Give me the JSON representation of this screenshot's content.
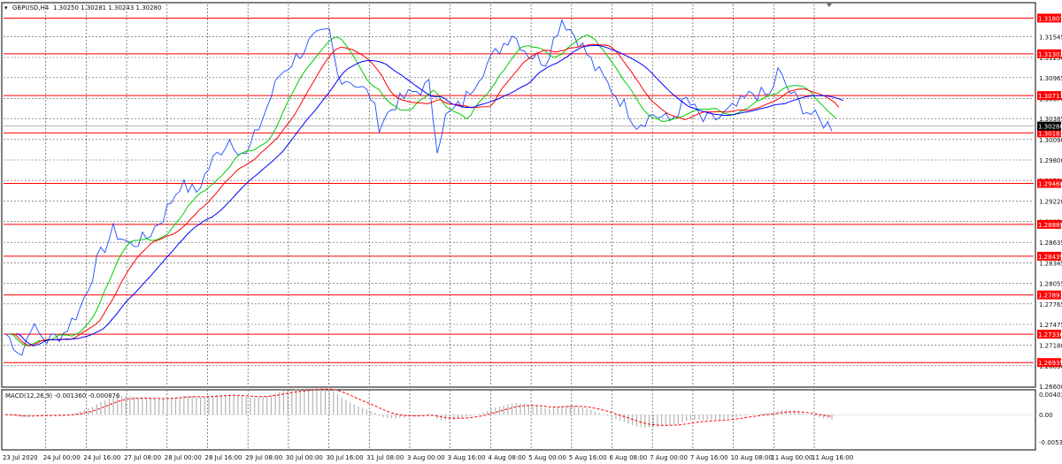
{
  "chart_data": [
    {
      "type": "line",
      "header": {
        "symbol": "GBPUSD,H4",
        "ohlc": "1.30250 1.30281 1.30243 1.30280"
      },
      "price_axis": {
        "labels": [
          "1.31545",
          "1.31250",
          "1.30965",
          "1.30670",
          "1.30385",
          "1.30090",
          "1.29800",
          "1.29510",
          "1.29220",
          "1.28930",
          "1.28635",
          "1.28345",
          "1.28055",
          "1.27765",
          "1.27475",
          "1.27180",
          "1.26890",
          "1.26600"
        ],
        "ylim": [
          1.266,
          1.32
        ]
      },
      "bid_label": "1.30280",
      "horizontal_levels": [
        "1.31807",
        "1.31302",
        "1.30711",
        "1.30183",
        "1.29468",
        "1.28889",
        "1.28439",
        "1.27891",
        "1.27336",
        "1.26935"
      ],
      "time_axis": [
        "23 Jul 2020",
        "24 Jul 00:00",
        "24 Jul 16:00",
        "27 Jul 08:00",
        "28 Jul 00:00",
        "28 Jul 16:00",
        "29 Jul 08:00",
        "30 Jul 00:00",
        "30 Jul 16:00",
        "31 Jul 08:00",
        "3 Aug 00:00",
        "3 Aug 16:00",
        "4 Aug 08:00",
        "5 Aug 00:00",
        "5 Aug 16:00",
        "6 Aug 08:00",
        "7 Aug 00:00",
        "7 Aug 16:00",
        "10 Aug 08:00",
        "11 Aug 00:00",
        "11 Aug 16:00"
      ],
      "price_anchors": [
        [
          0,
          1.2735
        ],
        [
          4,
          1.2705
        ],
        [
          6,
          1.2745
        ],
        [
          10,
          1.2725
        ],
        [
          14,
          1.2735
        ],
        [
          18,
          1.277
        ],
        [
          22,
          1.2835
        ],
        [
          26,
          1.288
        ],
        [
          30,
          1.286
        ],
        [
          34,
          1.287
        ],
        [
          38,
          1.29
        ],
        [
          42,
          1.2945
        ],
        [
          46,
          1.2935
        ],
        [
          50,
          1.298
        ],
        [
          54,
          1.301
        ],
        [
          58,
          1.2985
        ],
        [
          62,
          1.304
        ],
        [
          66,
          1.31
        ],
        [
          70,
          1.3125
        ],
        [
          74,
          1.315
        ],
        [
          78,
          1.316
        ],
        [
          80,
          1.31
        ],
        [
          84,
          1.309
        ],
        [
          88,
          1.307
        ],
        [
          90,
          1.303
        ],
        [
          94,
          1.306
        ],
        [
          98,
          1.3075
        ],
        [
          102,
          1.3085
        ],
        [
          104,
          1.3
        ],
        [
          106,
          1.304
        ],
        [
          110,
          1.306
        ],
        [
          114,
          1.31
        ],
        [
          118,
          1.313
        ],
        [
          122,
          1.316
        ],
        [
          126,
          1.313
        ],
        [
          130,
          1.312
        ],
        [
          134,
          1.318
        ],
        [
          138,
          1.315
        ],
        [
          142,
          1.311
        ],
        [
          146,
          1.308
        ],
        [
          150,
          1.305
        ],
        [
          152,
          1.303
        ],
        [
          156,
          1.3045
        ],
        [
          160,
          1.3035
        ],
        [
          164,
          1.3065
        ],
        [
          168,
          1.3035
        ],
        [
          172,
          1.304
        ],
        [
          176,
          1.3055
        ],
        [
          180,
          1.3075
        ],
        [
          184,
          1.307
        ],
        [
          186,
          1.3105
        ],
        [
          189,
          1.3075
        ],
        [
          192,
          1.3055
        ],
        [
          196,
          1.3035
        ],
        [
          199,
          1.3028
        ]
      ],
      "series": [
        {
          "name": "",
          "period": 8,
          "color": "#00cc00"
        },
        {
          "name": "",
          "period": 13,
          "color": "#ff0000"
        },
        {
          "name": "",
          "period": 21,
          "color": "#0000ff"
        }
      ]
    },
    {
      "type": "line",
      "title": "MACD(12,26,9) -0.001360 -0.000876",
      "y_labels": [
        "0.00403",
        "0.00",
        "-0.00531"
      ],
      "ylim": [
        -0.0065,
        0.0045
      ],
      "histogram_color": "#b4b4b4",
      "signal_color": "#ff0000"
    }
  ],
  "colors": {
    "level_line": "#ff0000",
    "level_label_bg": "#ff0000",
    "price_line": "#1f4cff",
    "grid": "#555555",
    "bid_label_bg": "#000000"
  }
}
